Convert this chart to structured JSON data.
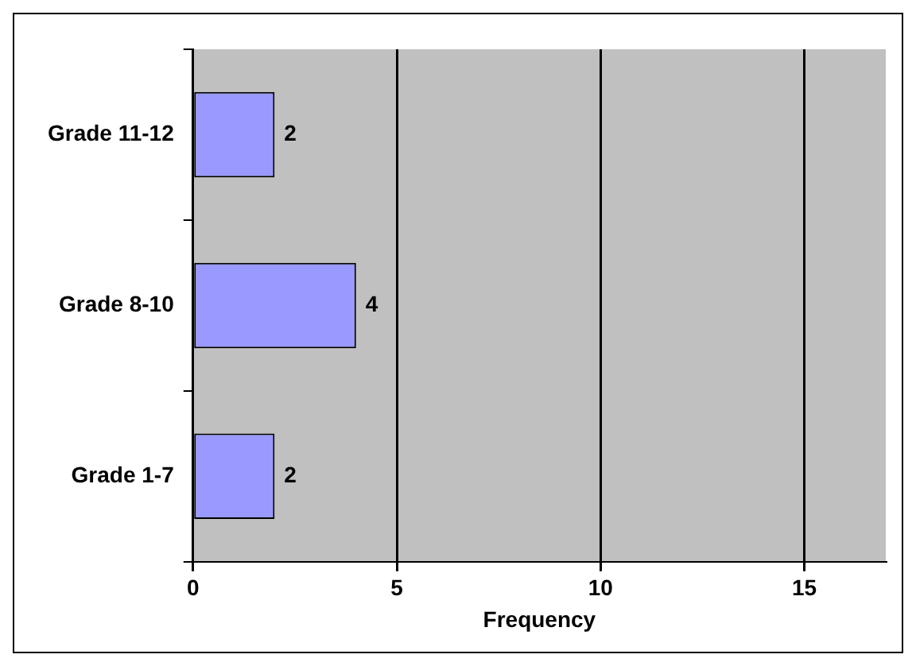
{
  "chart_data": {
    "type": "bar",
    "orientation": "horizontal",
    "xlabel": "Frequency",
    "categories": [
      "Grade 11-12",
      "Grade 8-10",
      "Grade 1-7"
    ],
    "values": [
      2,
      4,
      2
    ],
    "color": "#9999ff",
    "xlim": [
      0,
      17
    ],
    "xticks": [
      0,
      5,
      10,
      15
    ],
    "grid": "x",
    "legend": false,
    "data_labels": true
  }
}
